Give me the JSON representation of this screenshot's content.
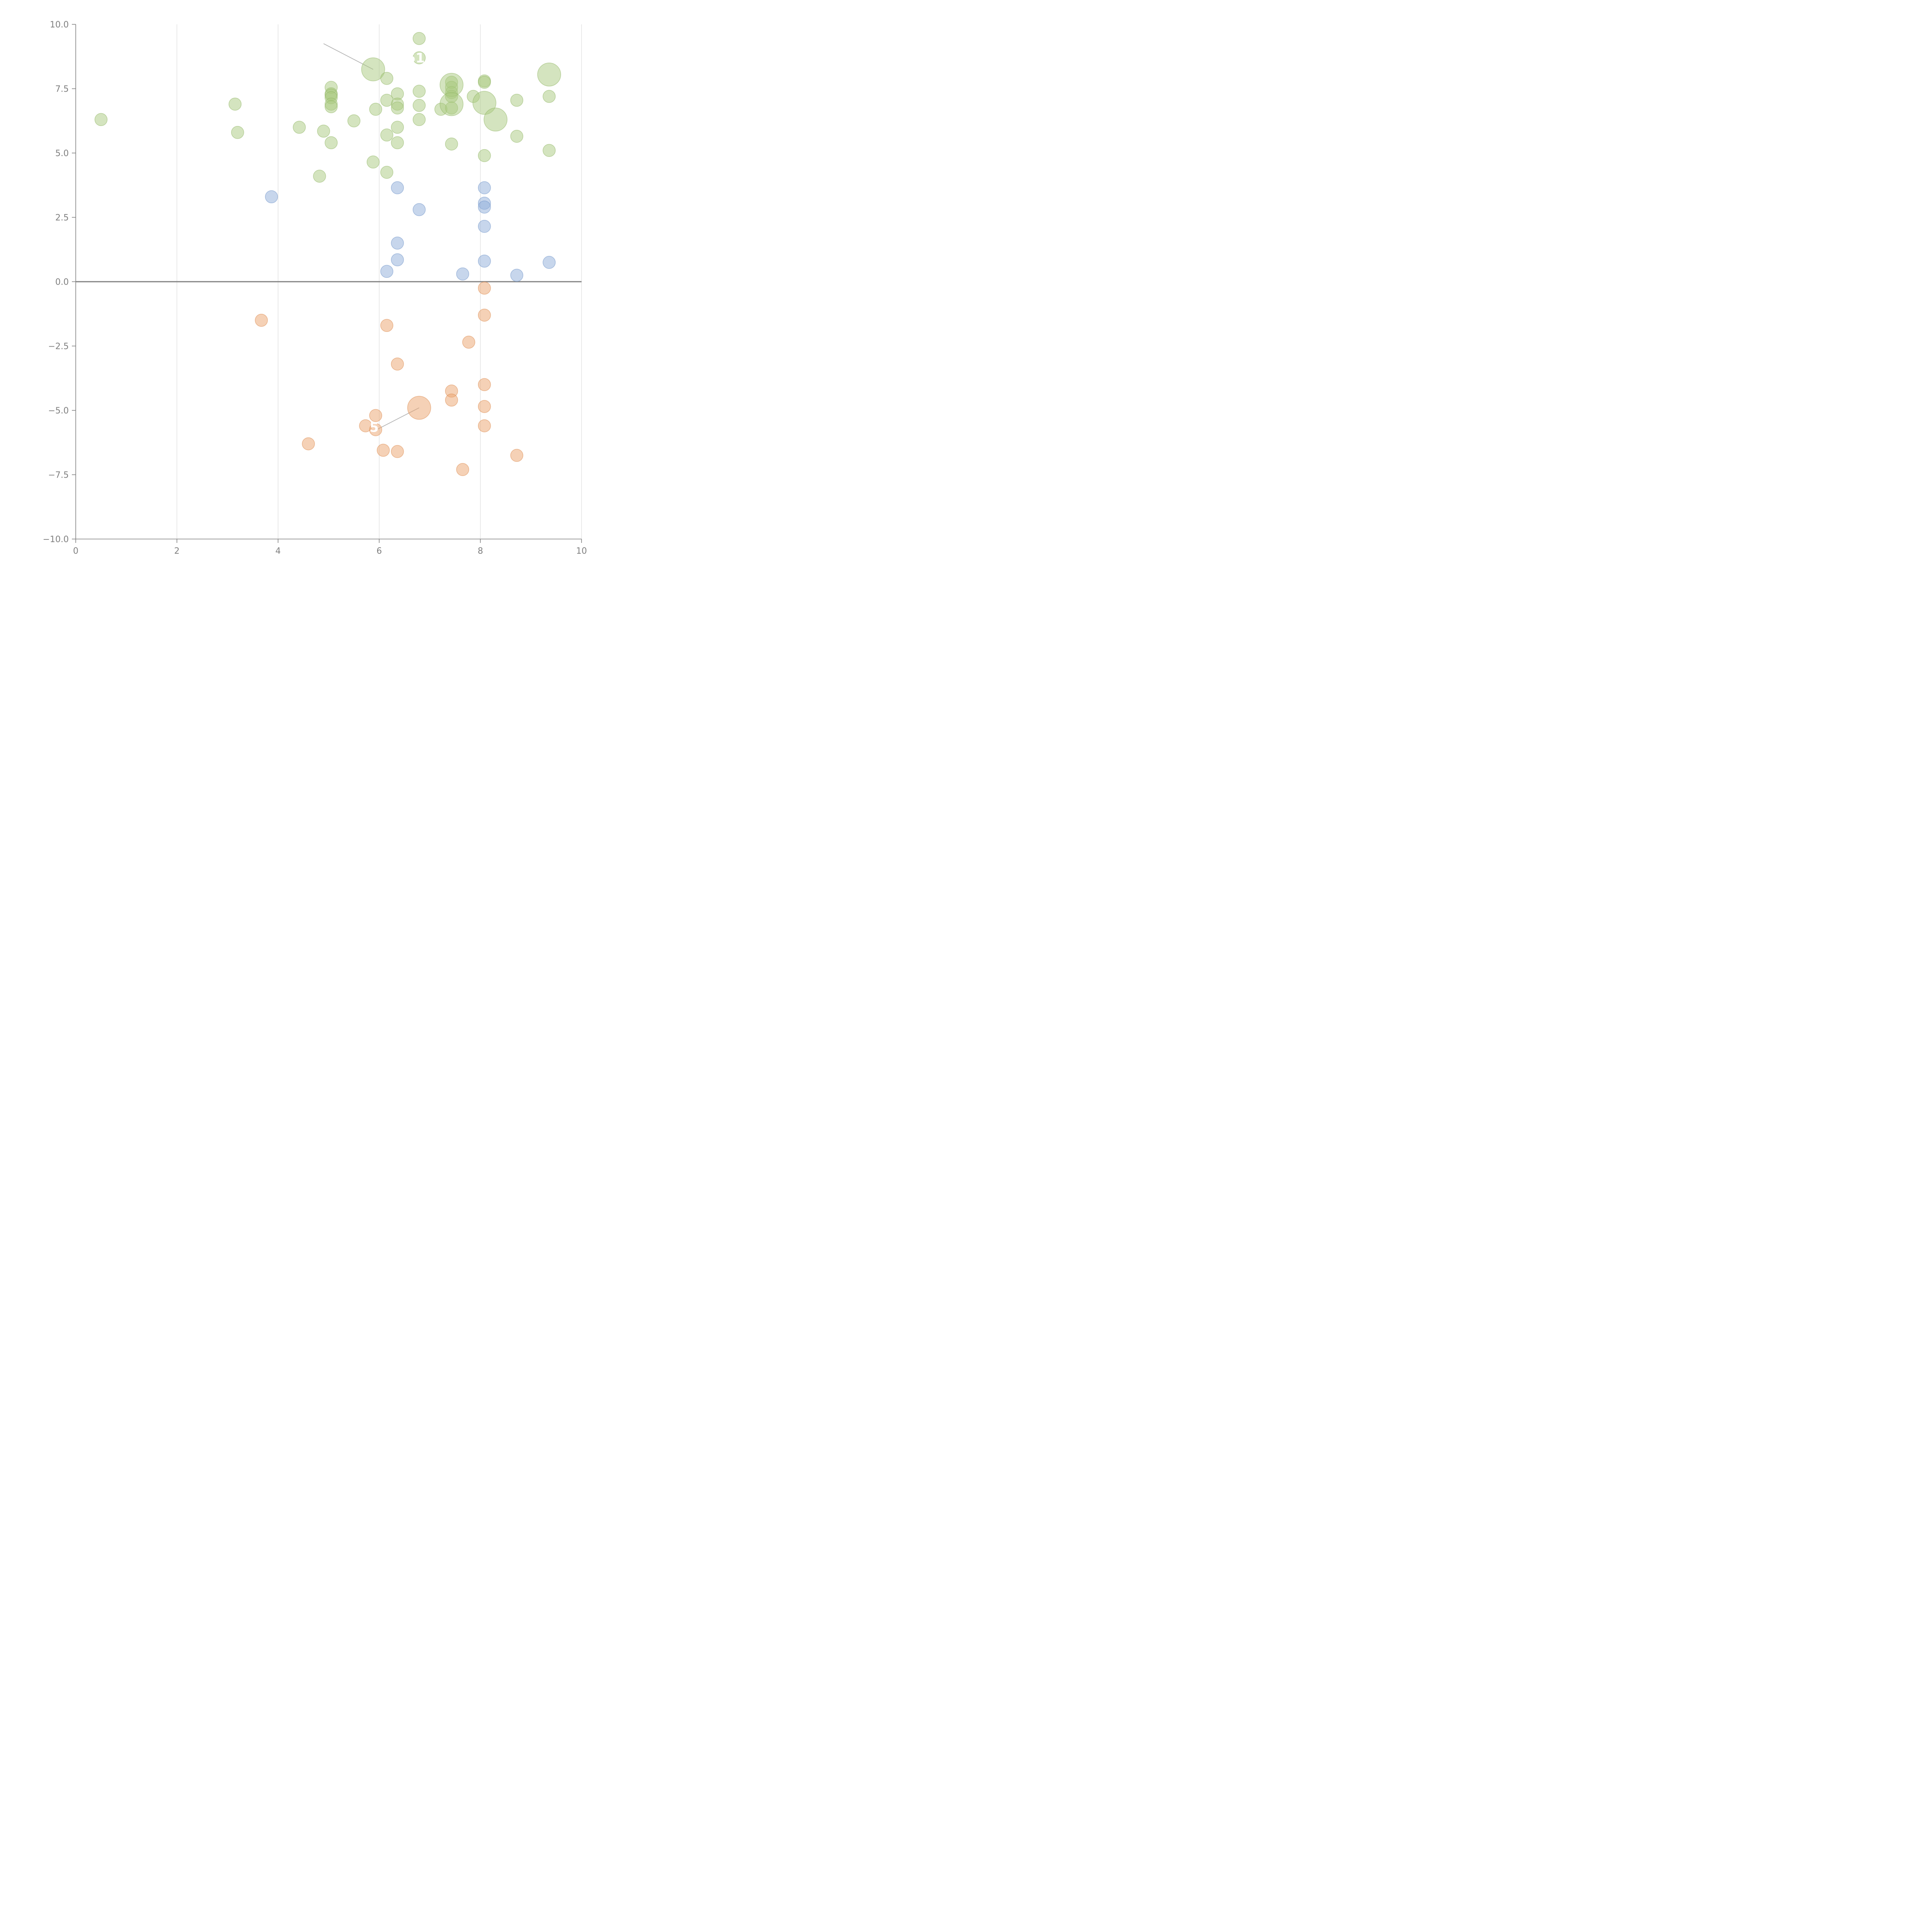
{
  "chart_data": {
    "type": "scatter",
    "title": "",
    "xlabel": "",
    "ylabel": "",
    "xlim": [
      0,
      10
    ],
    "ylim": [
      -10,
      10
    ],
    "xticks": [
      "0",
      "2",
      "4",
      "6",
      "8",
      "10"
    ],
    "yticks": [
      "10.0",
      "7.5",
      "5.0",
      "2.5",
      "0.0",
      "−2.5",
      "−5.0",
      "−7.5",
      "−10.0"
    ],
    "xtick_values": [
      0,
      2,
      4,
      6,
      8,
      10
    ],
    "ytick_values": [
      10,
      7.5,
      5,
      2.5,
      0,
      -2.5,
      -5,
      -7.5,
      -10
    ],
    "grid": "vertical",
    "reference_line_y": 0,
    "colors": {
      "green": "#a9c97f",
      "green_stroke": "#92b766",
      "blue": "#8fadd9",
      "blue_stroke": "#6f93c9",
      "orange": "#eba46e",
      "orange_stroke": "#dd8a4f"
    },
    "series": [
      {
        "name": "green",
        "color": "green",
        "points": [
          {
            "x": 0.5,
            "y": 6.3
          },
          {
            "x": 3.15,
            "y": 6.9
          },
          {
            "x": 3.2,
            "y": 5.8
          },
          {
            "x": 4.42,
            "y": 6.0
          },
          {
            "x": 4.82,
            "y": 4.1
          },
          {
            "x": 4.9,
            "y": 5.85
          },
          {
            "x": 5.05,
            "y": 7.55
          },
          {
            "x": 5.05,
            "y": 7.3
          },
          {
            "x": 5.05,
            "y": 7.25
          },
          {
            "x": 5.05,
            "y": 7.15
          },
          {
            "x": 5.05,
            "y": 6.9
          },
          {
            "x": 5.05,
            "y": 6.8
          },
          {
            "x": 5.05,
            "y": 5.4
          },
          {
            "x": 5.5,
            "y": 6.25
          },
          {
            "x": 5.88,
            "y": 8.25,
            "r": "large"
          },
          {
            "x": 5.88,
            "y": 4.65
          },
          {
            "x": 5.93,
            "y": 6.7
          },
          {
            "x": 6.15,
            "y": 7.9
          },
          {
            "x": 6.15,
            "y": 7.05
          },
          {
            "x": 6.15,
            "y": 5.7
          },
          {
            "x": 6.15,
            "y": 4.25
          },
          {
            "x": 6.36,
            "y": 7.3
          },
          {
            "x": 6.36,
            "y": 6.9
          },
          {
            "x": 6.36,
            "y": 6.75
          },
          {
            "x": 6.36,
            "y": 6.0
          },
          {
            "x": 6.36,
            "y": 5.4
          },
          {
            "x": 6.79,
            "y": 9.45
          },
          {
            "x": 6.79,
            "y": 8.7
          },
          {
            "x": 6.79,
            "y": 7.4
          },
          {
            "x": 6.79,
            "y": 6.85
          },
          {
            "x": 6.79,
            "y": 6.3
          },
          {
            "x": 7.22,
            "y": 6.7
          },
          {
            "x": 7.43,
            "y": 7.75
          },
          {
            "x": 7.43,
            "y": 7.55
          },
          {
            "x": 7.43,
            "y": 7.35
          },
          {
            "x": 7.43,
            "y": 7.2
          },
          {
            "x": 7.43,
            "y": 6.75
          },
          {
            "x": 7.43,
            "y": 5.35
          },
          {
            "x": 7.43,
            "y": 7.65,
            "r": "large"
          },
          {
            "x": 7.43,
            "y": 6.9,
            "r": "large"
          },
          {
            "x": 7.86,
            "y": 7.2
          },
          {
            "x": 8.08,
            "y": 7.8
          },
          {
            "x": 8.08,
            "y": 7.75
          },
          {
            "x": 8.08,
            "y": 4.9
          },
          {
            "x": 8.08,
            "y": 6.95,
            "r": "large"
          },
          {
            "x": 8.3,
            "y": 6.3,
            "r": "large"
          },
          {
            "x": 8.72,
            "y": 7.05
          },
          {
            "x": 8.72,
            "y": 5.65
          },
          {
            "x": 9.36,
            "y": 7.2
          },
          {
            "x": 9.36,
            "y": 5.1
          },
          {
            "x": 9.36,
            "y": 8.05,
            "r": "large"
          }
        ]
      },
      {
        "name": "blue",
        "color": "blue",
        "points": [
          {
            "x": 3.87,
            "y": 3.3
          },
          {
            "x": 6.15,
            "y": 0.4
          },
          {
            "x": 6.36,
            "y": 3.65
          },
          {
            "x": 6.36,
            "y": 1.5
          },
          {
            "x": 6.36,
            "y": 0.85
          },
          {
            "x": 6.79,
            "y": 2.8
          },
          {
            "x": 7.65,
            "y": 0.3
          },
          {
            "x": 8.08,
            "y": 3.65
          },
          {
            "x": 8.08,
            "y": 3.05
          },
          {
            "x": 8.08,
            "y": 2.9
          },
          {
            "x": 8.08,
            "y": 2.15
          },
          {
            "x": 8.08,
            "y": 0.8
          },
          {
            "x": 8.72,
            "y": 0.25
          },
          {
            "x": 9.36,
            "y": 0.75
          }
        ]
      },
      {
        "name": "orange",
        "color": "orange",
        "points": [
          {
            "x": 3.67,
            "y": -1.5
          },
          {
            "x": 4.6,
            "y": -6.3
          },
          {
            "x": 5.73,
            "y": -5.6
          },
          {
            "x": 5.93,
            "y": -5.2
          },
          {
            "x": 5.93,
            "y": -5.75
          },
          {
            "x": 6.08,
            "y": -6.55
          },
          {
            "x": 6.15,
            "y": -1.7
          },
          {
            "x": 6.36,
            "y": -3.2
          },
          {
            "x": 6.36,
            "y": -6.6
          },
          {
            "x": 6.79,
            "y": -4.9,
            "r": "large"
          },
          {
            "x": 7.43,
            "y": -4.25
          },
          {
            "x": 7.43,
            "y": -4.6
          },
          {
            "x": 7.65,
            "y": -7.3
          },
          {
            "x": 7.77,
            "y": -2.35
          },
          {
            "x": 8.08,
            "y": -0.25
          },
          {
            "x": 8.08,
            "y": -1.3
          },
          {
            "x": 8.08,
            "y": -4.0
          },
          {
            "x": 8.08,
            "y": -4.85
          },
          {
            "x": 8.08,
            "y": -5.6
          },
          {
            "x": 8.72,
            "y": -6.75
          }
        ]
      }
    ],
    "callouts": [
      {
        "from": [
          5.88,
          8.25
        ],
        "to": [
          4.9,
          9.25
        ],
        "style": "grey"
      },
      {
        "from": [
          6.79,
          -4.9
        ],
        "to": [
          5.9,
          -5.8
        ],
        "style": "grey"
      },
      {
        "from": [
          7.43,
          7.65
        ],
        "to": [
          7.3,
          7.85
        ],
        "style": "light"
      },
      {
        "from": [
          7.43,
          6.9
        ],
        "to": [
          7.38,
          6.55
        ],
        "style": "light"
      },
      {
        "from": [
          8.08,
          6.95
        ],
        "to": [
          8.0,
          6.55
        ],
        "style": "light"
      },
      {
        "from": [
          8.3,
          6.3
        ],
        "to": [
          8.42,
          6.65
        ],
        "style": "light"
      },
      {
        "from": [
          9.36,
          8.05
        ],
        "to": [
          9.2,
          8.2
        ],
        "style": "light"
      }
    ],
    "labels": [
      {
        "text": "51",
        "x": 6.72,
        "y": 8.7
      },
      {
        "text": "5",
        "x": 5.9,
        "y": -5.65
      }
    ]
  }
}
